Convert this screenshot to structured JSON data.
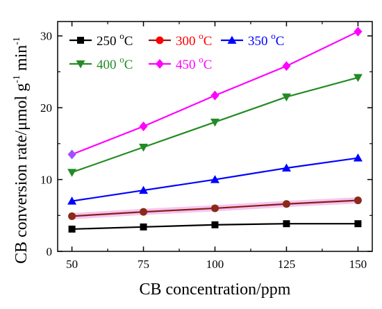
{
  "chart_data": {
    "type": "line",
    "xlabel": "CB concentration/ppm",
    "ylabel_main": "CB conversion rate/μmol g",
    "ylabel_exp1": "-1",
    "ylabel_mid": " min",
    "ylabel_exp2": "-1",
    "x": [
      50,
      75,
      100,
      125,
      150
    ],
    "xticks": [
      "50",
      "75",
      "100",
      "125",
      "150"
    ],
    "yticks": [
      "0",
      "10",
      "20",
      "30"
    ],
    "xlim": [
      45,
      155
    ],
    "ylim": [
      0,
      32
    ],
    "grid": false,
    "legend_placement": "top-left",
    "series": [
      {
        "name": "250 °C",
        "label_num": "250 ",
        "label_deg": "o",
        "label_unit": "C",
        "color": "#000000",
        "marker": "square",
        "values": [
          3.1,
          3.4,
          3.7,
          3.85,
          3.85
        ]
      },
      {
        "name": "300 °C",
        "label_num": "300 ",
        "label_deg": "o",
        "label_unit": "C",
        "color": "#ff0000",
        "line_color": "#8b1a1a",
        "marker": "circle",
        "values": [
          4.9,
          5.5,
          6.0,
          6.6,
          7.1
        ]
      },
      {
        "name": "350 °C",
        "label_num": "350 ",
        "label_deg": "o",
        "label_unit": "C",
        "color": "#0000ff",
        "marker": "triangle-up",
        "values": [
          7.0,
          8.5,
          10.0,
          11.6,
          13.0
        ]
      },
      {
        "name": "400 °C",
        "label_num": "400 ",
        "label_deg": "o",
        "label_unit": "C",
        "color": "#228b22",
        "marker": "triangle-down",
        "values": [
          11.0,
          14.5,
          18.0,
          21.5,
          24.2
        ]
      },
      {
        "name": "450 °C",
        "label_num": "450 ",
        "label_deg": "o",
        "label_unit": "C",
        "color": "#ff00ff",
        "marker": "diamond",
        "values": [
          13.5,
          17.4,
          21.7,
          25.8,
          30.6
        ]
      }
    ]
  }
}
